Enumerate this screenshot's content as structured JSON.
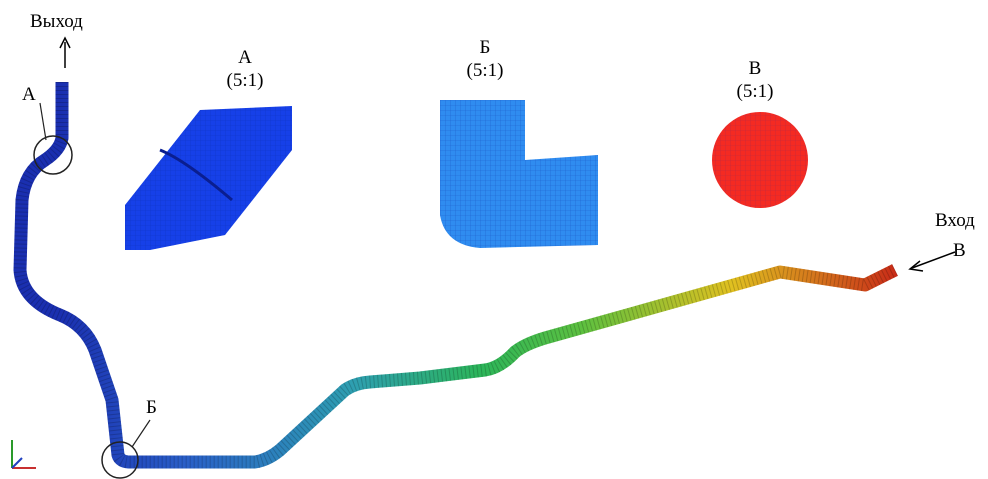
{
  "labels": {
    "outlet": "Выход",
    "inlet": "Вход",
    "point_a": "А",
    "point_b": "Б",
    "point_v": "В"
  },
  "insets": [
    {
      "title": "А",
      "scale": "(5:1)"
    },
    {
      "title": "Б",
      "scale": "(5:1)"
    },
    {
      "title": "В",
      "scale": "(5:1)"
    }
  ]
}
